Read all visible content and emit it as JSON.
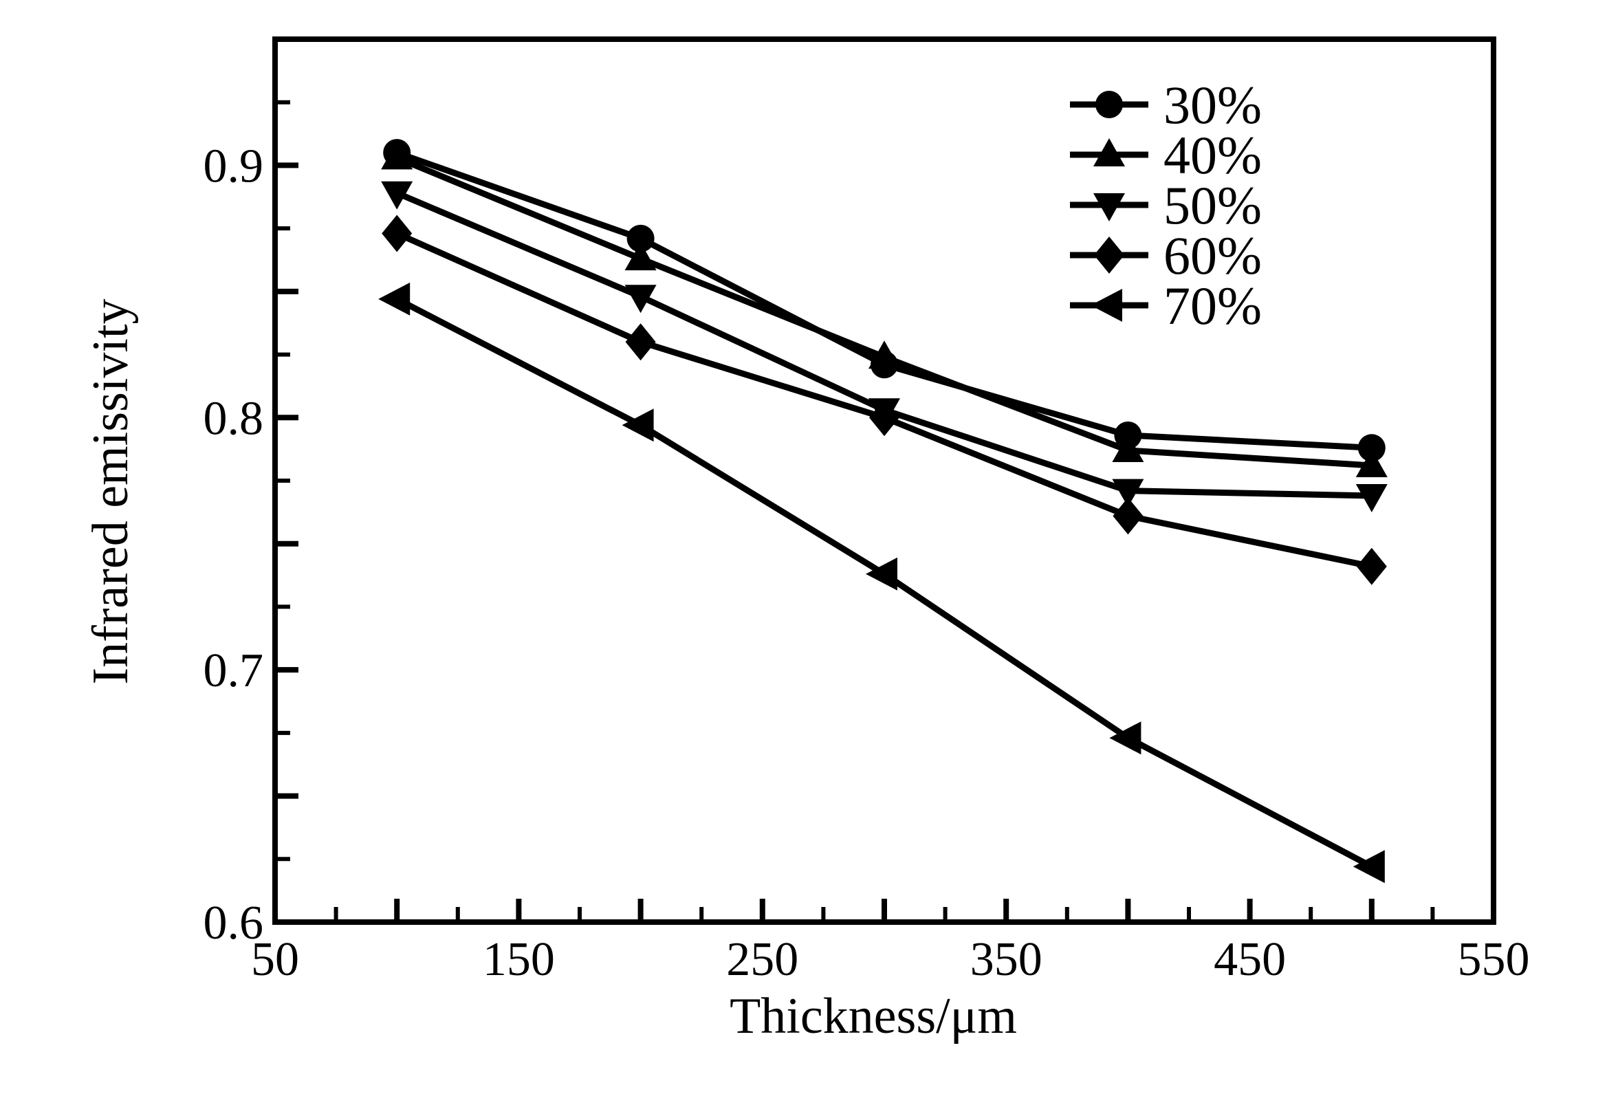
{
  "figure": {
    "background_color": "#ffffff",
    "ink_color": "#000000"
  },
  "chart_data": {
    "type": "line",
    "title": "",
    "xlabel": "Thickness/μm",
    "ylabel": "Infrared emissivity",
    "x": [
      100,
      200,
      300,
      400,
      500
    ],
    "series": [
      {
        "name": "30%",
        "marker": "circle",
        "values": [
          0.905,
          0.871,
          0.821,
          0.793,
          0.788
        ]
      },
      {
        "name": "40%",
        "marker": "triangle-up",
        "values": [
          0.903,
          0.863,
          0.824,
          0.787,
          0.781
        ]
      },
      {
        "name": "50%",
        "marker": "triangle-down",
        "values": [
          0.889,
          0.848,
          0.803,
          0.771,
          0.769
        ]
      },
      {
        "name": "60%",
        "marker": "diamond",
        "values": [
          0.873,
          0.83,
          0.8,
          0.761,
          0.741
        ]
      },
      {
        "name": "70%",
        "marker": "triangle-left",
        "values": [
          0.847,
          0.797,
          0.738,
          0.673,
          0.622
        ]
      }
    ],
    "xlim": [
      50,
      550
    ],
    "ylim": [
      0.6,
      0.95
    ],
    "x_tick_labels": [
      50,
      150,
      250,
      350,
      450,
      550
    ],
    "y_tick_labels": [
      0.9,
      0.8,
      0.7,
      0.6
    ],
    "x_major_step": 50,
    "x_minor_step": 25,
    "y_major_step": 0.05,
    "y_minor_step": 0.025,
    "grid": false,
    "legend_position": "upper-right",
    "line_color": "#000000",
    "marker_color": "#000000"
  }
}
